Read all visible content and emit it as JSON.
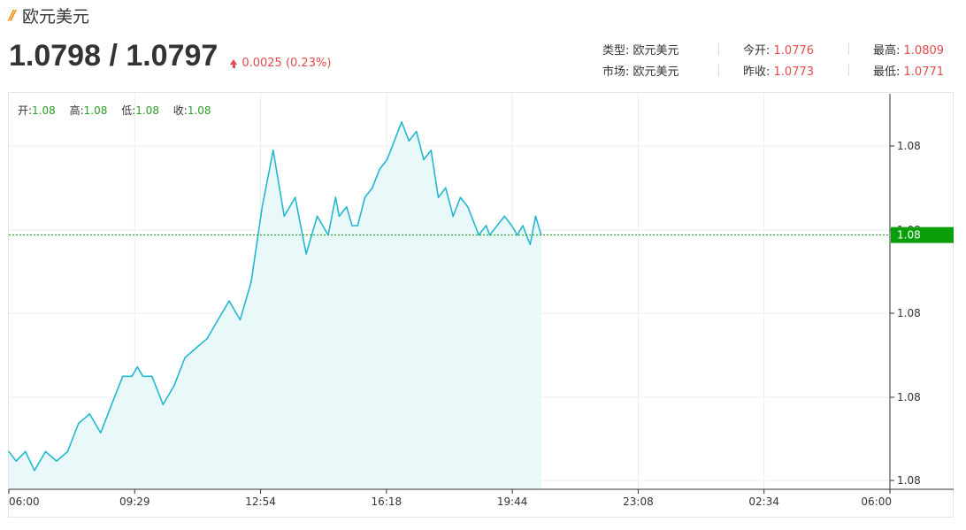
{
  "header": {
    "title": "欧元美元",
    "bid_ask": "1.0798 / 1.0797",
    "change": "0.0025 (0.23%)",
    "colors": {
      "up": "#e44b4b",
      "accent": "#f08a00",
      "line": "#23b8cf",
      "fill": "#e9f8f9",
      "current": "#0a9e0a"
    },
    "stats": {
      "type_label": "类型:",
      "type_value": "欧元美元",
      "market_label": "市场:",
      "market_value": "欧元美元",
      "open_label": "今开:",
      "open_value": "1.0776",
      "prev_close_label": "昨收:",
      "prev_close_value": "1.0773",
      "high_label": "最高:",
      "high_value": "1.0809",
      "low_label": "最低:",
      "low_value": "1.0771"
    }
  },
  "ohlc": {
    "open_label": "开:",
    "open_value": "1.08",
    "high_label": "高:",
    "high_value": "1.08",
    "low_label": "低:",
    "low_value": "1.08",
    "close_label": "收:",
    "close_value": "1.08"
  },
  "chart_data": {
    "type": "area",
    "title": "",
    "x_tick_labels": [
      "06:00",
      "09:29",
      "12:54",
      "16:18",
      "19:44",
      "23:08",
      "02:34",
      "06:00"
    ],
    "y_tick_labels": [
      "1.08",
      "1.08",
      "1.08",
      "1.08",
      "1.08"
    ],
    "ylim": [
      1.077,
      1.0812
    ],
    "current_price_label": "1.08",
    "current_price": 1.0797,
    "grid": true,
    "x_unit": "hours since 06:00",
    "series": [
      {
        "x": [
          0,
          0.2,
          0.45,
          0.7,
          1.0,
          1.3,
          1.6,
          1.9,
          2.2,
          2.5,
          2.8,
          3.1,
          3.35,
          3.5,
          3.65,
          3.9,
          4.2,
          4.5,
          4.8,
          5.1,
          5.4,
          5.7,
          6.0,
          6.3,
          6.6,
          6.9,
          7.2,
          7.5,
          7.8,
          8.1,
          8.4,
          8.7,
          8.9,
          9.0,
          9.2,
          9.35,
          9.5,
          9.7,
          9.9,
          10.1,
          10.3,
          10.5,
          10.7,
          10.9,
          11.1,
          11.3,
          11.5,
          11.7,
          11.9,
          12.1,
          12.3,
          12.5,
          12.8,
          13.0,
          13.1,
          13.3,
          13.5,
          13.7,
          13.85,
          14.0,
          14.2,
          14.35,
          14.5
        ],
        "y": [
          1.0774,
          1.0773,
          1.0774,
          1.0772,
          1.0774,
          1.0773,
          1.0774,
          1.0777,
          1.0778,
          1.0776,
          1.0779,
          1.0782,
          1.0782,
          1.0783,
          1.0782,
          1.0782,
          1.0779,
          1.0781,
          1.0784,
          1.0785,
          1.0786,
          1.0788,
          1.079,
          1.0788,
          1.0792,
          1.08,
          1.0806,
          1.0799,
          1.0801,
          1.0795,
          1.0799,
          1.0797,
          1.0801,
          1.0799,
          1.08,
          1.0798,
          1.0798,
          1.0801,
          1.0802,
          1.0804,
          1.0805,
          1.0807,
          1.0809,
          1.0807,
          1.0808,
          1.0805,
          1.0806,
          1.0801,
          1.0802,
          1.0799,
          1.0801,
          1.08,
          1.0797,
          1.0798,
          1.0797,
          1.0798,
          1.0799,
          1.0798,
          1.0797,
          1.0798,
          1.0796,
          1.0799,
          1.0797
        ]
      }
    ]
  }
}
